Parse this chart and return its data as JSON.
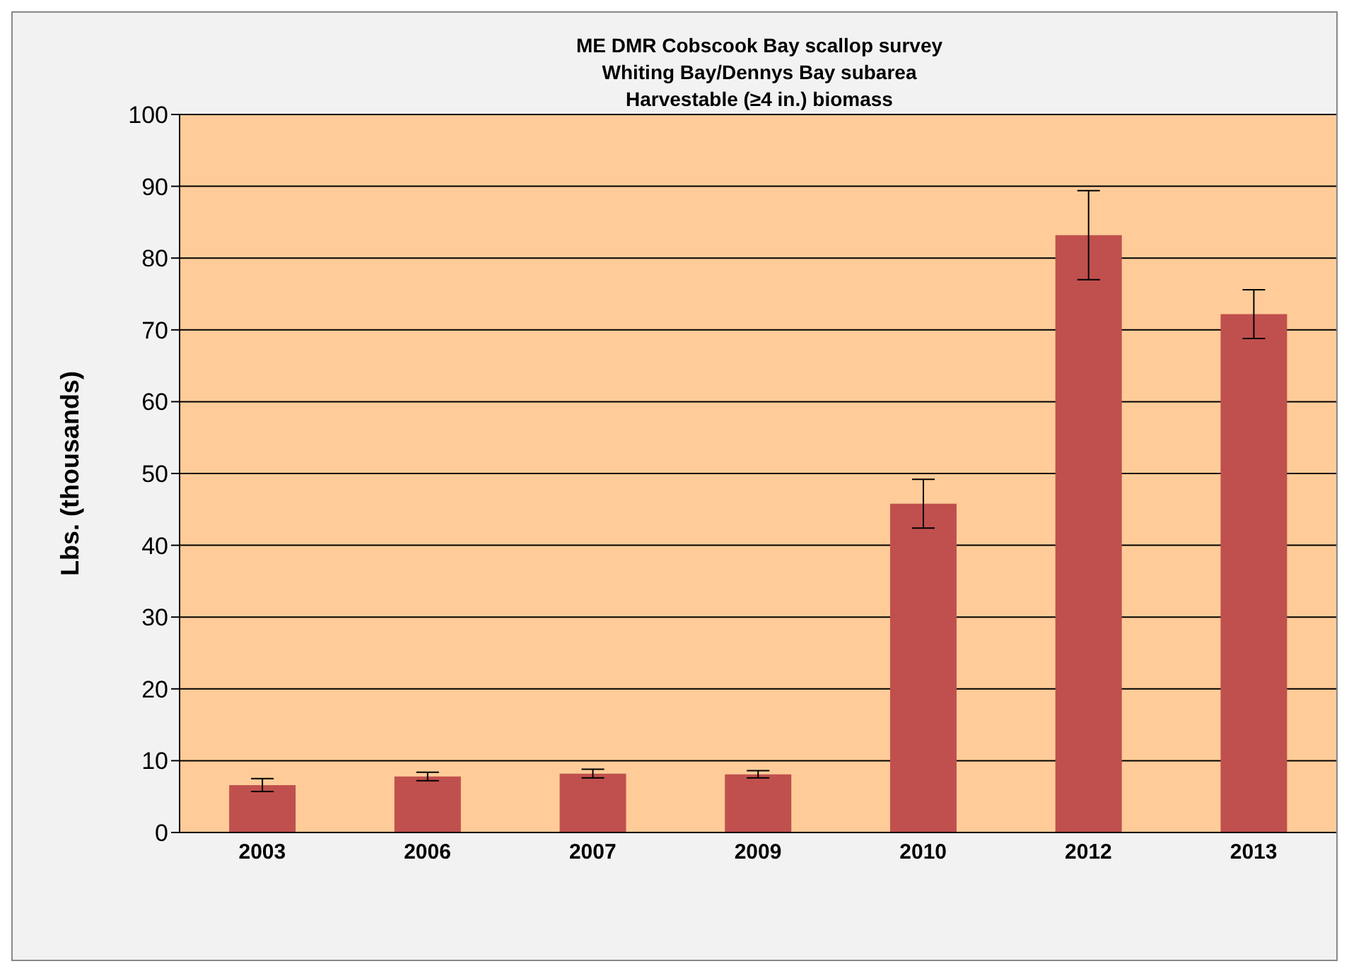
{
  "chart_data": {
    "type": "bar",
    "title": "ME DMR Cobscook Bay scallop survey\nWhiting Bay/Dennys Bay subarea\nHarvestable (≥4 in.) biomass",
    "ylabel": "Lbs. (thousands)",
    "categories": [
      "2003",
      "2006",
      "2007",
      "2009",
      "2010",
      "2012",
      "2013"
    ],
    "values": [
      6.6,
      7.8,
      8.2,
      8.1,
      45.8,
      83.2,
      72.2
    ],
    "errors": [
      0.9,
      0.6,
      0.6,
      0.5,
      3.4,
      6.2,
      3.4
    ],
    "color": "#c0504d",
    "ylim": [
      0,
      100
    ],
    "yticks": [
      0,
      10,
      20,
      30,
      40,
      50,
      60,
      70,
      80,
      90,
      100
    ],
    "grid": "y",
    "legend": false
  }
}
